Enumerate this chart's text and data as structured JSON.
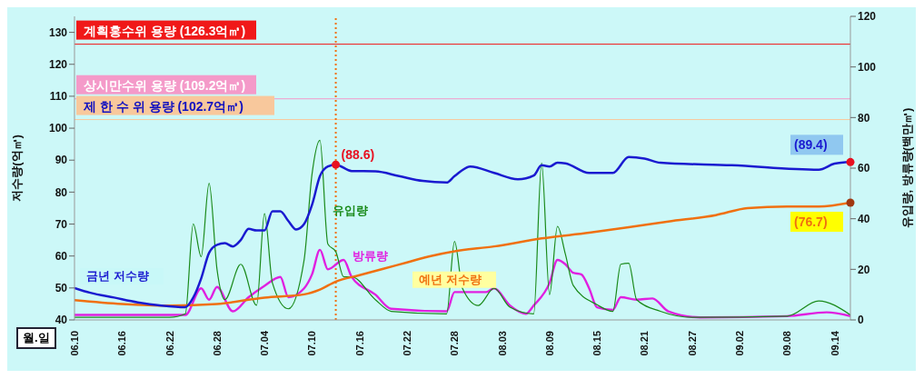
{
  "chart_data": {
    "type": "line",
    "xlabel": "월.일",
    "ylabel": "저수량(억㎥)",
    "y2label": "유입량, 방류량(백만㎥)",
    "xlim": [
      "--06-10",
      "--09-16"
    ],
    "xticks": [
      {
        "value": "--06-10",
        "label": "06.10"
      },
      {
        "value": "--06-16",
        "label": "06.16"
      },
      {
        "value": "--06-22",
        "label": "06.22"
      },
      {
        "value": "--06-28",
        "label": "06.28"
      },
      {
        "value": "--07-04",
        "label": "07.04"
      },
      {
        "value": "--07-10",
        "label": "07.10"
      },
      {
        "value": "--07-16",
        "label": "07.16"
      },
      {
        "value": "--07-22",
        "label": "07.22"
      },
      {
        "value": "--07-28",
        "label": "07.28"
      },
      {
        "value": "--08-03",
        "label": "08.03"
      },
      {
        "value": "--08-09",
        "label": "08.09"
      },
      {
        "value": "--08-15",
        "label": "08.15"
      },
      {
        "value": "--08-21",
        "label": "08.21"
      },
      {
        "value": "--08-27",
        "label": "08.27"
      },
      {
        "value": "--09-02",
        "label": "09.02"
      },
      {
        "value": "--09-08",
        "label": "09.08"
      },
      {
        "value": "--09-14",
        "label": "09.14"
      }
    ],
    "ylim": [
      40,
      135
    ],
    "yticks": [
      40,
      50,
      60,
      70,
      80,
      90,
      100,
      110,
      120,
      130
    ],
    "y2lim": [
      0,
      120
    ],
    "y2ticks": [
      0,
      20,
      40,
      60,
      80,
      100,
      120
    ],
    "series": [
      {
        "name": "금년 저수량",
        "color": "#1a1ad0",
        "x": [
          "--06-10",
          "--06-12",
          "--06-15",
          "--06-18",
          "--06-21",
          "--06-24",
          "--06-25",
          "--06-26",
          "--06-27",
          "--06-28",
          "--06-29",
          "--06-30",
          "--07-01",
          "--07-02",
          "--07-03",
          "--07-04",
          "--07-05",
          "--07-06",
          "--07-07",
          "--07-08",
          "--07-09",
          "--07-10",
          "--07-11",
          "--07-12",
          "--07-13",
          "--07-15",
          "--07-18",
          "--07-21",
          "--07-24",
          "--07-27",
          "--07-28",
          "--07-30",
          "--08-02",
          "--08-05",
          "--08-07",
          "--08-08",
          "--08-09",
          "--08-10",
          "--08-11",
          "--08-14",
          "--08-17",
          "--08-19",
          "--08-21",
          "--08-23",
          "--09-01",
          "--09-12",
          "--09-14",
          "--09-16"
        ],
        "values": [
          50,
          48.5,
          47,
          45.5,
          44.5,
          44,
          47,
          53,
          61,
          63.5,
          64,
          63,
          65,
          68.5,
          68,
          68,
          74,
          74,
          71,
          68.3,
          70,
          76,
          85,
          88,
          88.6,
          86.6,
          86.5,
          85,
          83.5,
          83,
          85,
          88,
          86,
          84,
          85.2,
          88.4,
          88,
          89.2,
          89,
          86,
          86,
          91,
          90.5,
          89.2,
          88.4,
          87,
          88.9,
          89.4
        ]
      },
      {
        "name": "예년 저수량",
        "color": "#f07010",
        "x": [
          "--06-10",
          "--06-16",
          "--06-22",
          "--06-28",
          "--07-04",
          "--07-09",
          "--07-11",
          "--07-13",
          "--07-16",
          "--07-19",
          "--07-22",
          "--07-25",
          "--07-28",
          "--08-02",
          "--08-08",
          "--08-14",
          "--08-19",
          "--08-24",
          "--08-30",
          "--09-03",
          "--09-08",
          "--09-12",
          "--09-16"
        ],
        "values": [
          46.2,
          45,
          44.5,
          45,
          47,
          48,
          49.5,
          52,
          54,
          56,
          58,
          60,
          61.5,
          63,
          65.5,
          67.3,
          69,
          70.8,
          72.8,
          75,
          75.5,
          75.5,
          76.7
        ]
      },
      {
        "name": "유입량",
        "color": "#1a8a1a",
        "axis": "y2",
        "x": [
          "--06-10",
          "--06-16",
          "--06-22",
          "--06-24",
          "--06-25",
          "--06-26",
          "--06-27",
          "--06-28",
          "--06-29",
          "--07-01",
          "--07-03",
          "--07-04",
          "--07-05",
          "--07-07",
          "--07-09",
          "--07-10",
          "--07-11",
          "--07-12",
          "--07-13",
          "--07-14",
          "--07-15",
          "--07-18",
          "--07-20",
          "--07-27",
          "--07-28",
          "--07-29",
          "--07-31",
          "--08-02",
          "--08-04",
          "--08-07",
          "--08-08",
          "--08-09",
          "--08-10",
          "--08-11",
          "--08-12",
          "--08-15",
          "--08-17",
          "--08-18",
          "--08-19",
          "--08-20",
          "--08-23",
          "--08-27",
          "--09-08",
          "--09-12",
          "--09-16"
        ],
        "values": [
          1,
          1,
          1,
          2.4,
          38,
          25,
          54,
          20,
          8,
          22,
          5.8,
          42,
          14.6,
          4.4,
          23.7,
          57.6,
          71,
          30,
          27,
          17,
          17,
          8,
          3.4,
          2.4,
          31,
          12.5,
          5.7,
          12.5,
          5,
          2.4,
          62,
          10,
          37,
          26,
          13.6,
          6,
          3.4,
          22,
          22.4,
          8,
          3.4,
          1,
          1.5,
          7.5,
          2
        ]
      },
      {
        "name": "방류량",
        "color": "#e020e0",
        "axis": "y2",
        "x": [
          "--06-10",
          "--06-22",
          "--06-24",
          "--06-26",
          "--06-27",
          "--06-28",
          "--06-30",
          "--07-02",
          "--07-04",
          "--07-06",
          "--07-07",
          "--07-09",
          "--07-10",
          "--07-11",
          "--07-12",
          "--07-14",
          "--07-15",
          "--07-18",
          "--07-20",
          "--07-27",
          "--07-28",
          "--08-01",
          "--08-02",
          "--08-04",
          "--08-06",
          "--08-07",
          "--08-09",
          "--08-10",
          "--08-11",
          "--08-12",
          "--08-13",
          "--08-14",
          "--08-15",
          "--08-17",
          "--08-18",
          "--08-20",
          "--08-22",
          "--08-24",
          "--08-28",
          "--09-08",
          "--09-13",
          "--09-16"
        ],
        "values": [
          2,
          2,
          2,
          12.5,
          8,
          13,
          3.4,
          9,
          13.5,
          17,
          9,
          12.5,
          18,
          27.7,
          20,
          23.7,
          17,
          10,
          4.4,
          3.4,
          11,
          11,
          12.5,
          5.7,
          2.4,
          5.7,
          14.6,
          23.7,
          22,
          18.6,
          18,
          12.5,
          5,
          4,
          9,
          8,
          8.5,
          3.4,
          1,
          1.5,
          3,
          1.5
        ]
      }
    ],
    "ref_lines": [
      {
        "axis": "y",
        "value": 126.3,
        "label": "계획홍수위 용량 (126.3억㎥)",
        "color": "#f01818"
      },
      {
        "axis": "y",
        "value": 109.2,
        "label": "상시만수위 용량 (109.2억㎥)",
        "color": "#f49ac9"
      },
      {
        "axis": "y",
        "value": 102.7,
        "label": "제 한 수 위 용량 (102.7억㎥)",
        "color": "#f8c89c"
      },
      {
        "axis": "x",
        "value": "--07-13",
        "color": "#f07010",
        "line_style": "dotted"
      }
    ],
    "annotations": [
      {
        "text": "(88.6)",
        "x": "--07-13",
        "y": 88.6
      },
      {
        "text": "(89.4)",
        "x": "--09-16",
        "y": 89.4
      },
      {
        "text": "(76.7)",
        "x": "--09-16",
        "y": 76.7
      }
    ]
  }
}
